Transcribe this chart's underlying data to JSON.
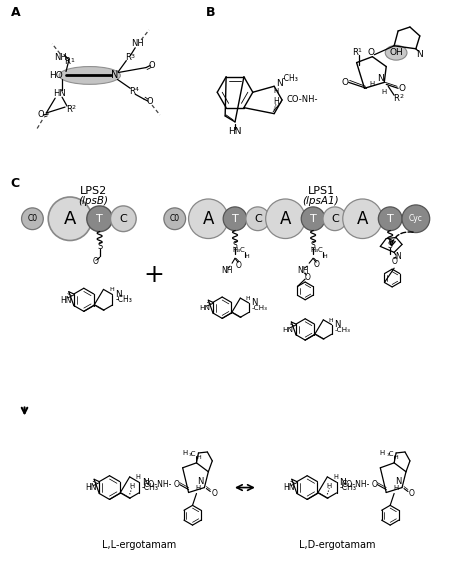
{
  "figsize": [
    4.74,
    5.64
  ],
  "dpi": 100,
  "bg_color": "#ffffff",
  "panel_A_label": "A",
  "panel_B_label": "B",
  "panel_C_label": "C",
  "lps2_label": "LPS2",
  "lps2_italic": "(lpsB)",
  "lps1_label": "LPS1",
  "lps1_italic": "(lpsA1)",
  "ll_ergotamam": "L,L-ergotamam",
  "ld_ergotamam": "L,D-ergotamam"
}
